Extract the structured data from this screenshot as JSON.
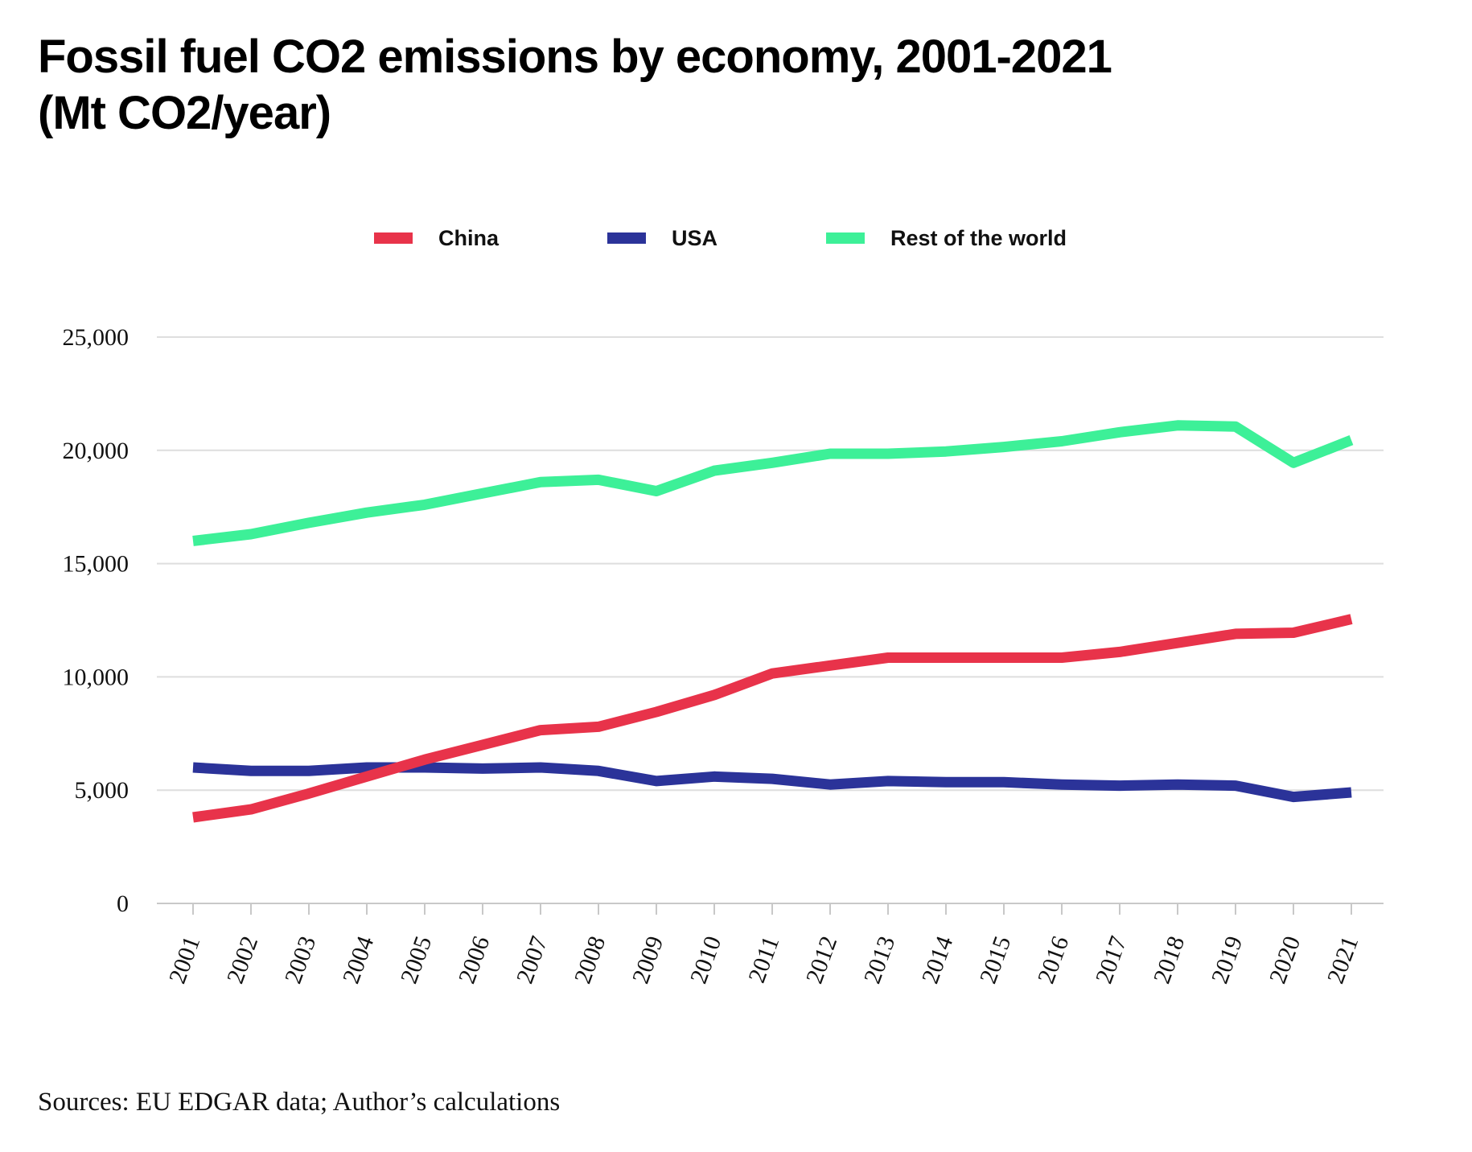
{
  "title_lines": [
    "Fossil fuel CO2 emissions by economy, 2001-2021",
    "(Mt CO2/year)"
  ],
  "source": "Sources: EU EDGAR data; Author’s calculations",
  "chart_data": {
    "type": "line",
    "title": "Fossil fuel CO2 emissions by economy, 2001-2021 (Mt CO2/year)",
    "xlabel": "",
    "ylabel": "",
    "x": [
      "2001",
      "2002",
      "2003",
      "2004",
      "2005",
      "2006",
      "2007",
      "2008",
      "2009",
      "2010",
      "2011",
      "2012",
      "2013",
      "2014",
      "2015",
      "2016",
      "2017",
      "2018",
      "2019",
      "2020",
      "2021"
    ],
    "ylim": [
      0,
      25000
    ],
    "yticks": [
      0,
      5000,
      10000,
      15000,
      20000,
      25000
    ],
    "ytick_labels": [
      "0",
      "5,000",
      "10,000",
      "15,000",
      "20,000",
      "25,000"
    ],
    "grid": "horizontal",
    "legend": "top-center",
    "series": [
      {
        "name": "China",
        "color": "#e8334a",
        "values": [
          3800,
          4150,
          4850,
          5600,
          6350,
          7000,
          7650,
          7800,
          8450,
          9200,
          10150,
          10500,
          10850,
          10850,
          10850,
          10850,
          11100,
          11500,
          11900,
          11950,
          12550
        ]
      },
      {
        "name": "USA",
        "color": "#2b3399",
        "values": [
          6000,
          5850,
          5850,
          6000,
          6000,
          5950,
          6000,
          5850,
          5400,
          5600,
          5500,
          5250,
          5400,
          5350,
          5350,
          5250,
          5200,
          5250,
          5200,
          4700,
          4900
        ]
      },
      {
        "name": "Rest of the world",
        "color": "#3df098",
        "values": [
          16000,
          16300,
          16800,
          17250,
          17600,
          18100,
          18600,
          18700,
          18200,
          19100,
          19450,
          19850,
          19850,
          19950,
          20150,
          20400,
          20800,
          21100,
          21050,
          19450,
          20450
        ]
      }
    ]
  }
}
